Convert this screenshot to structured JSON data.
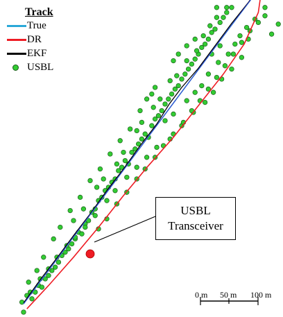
{
  "chart_data": {
    "type": "line",
    "legend": {
      "title": "Track",
      "placement": "top-left",
      "entries": [
        {
          "label": "True",
          "color": "#2aa8d8",
          "marker": "line"
        },
        {
          "label": "DR",
          "color": "#ee1c24",
          "marker": "line"
        },
        {
          "label": "EKF",
          "color": "#000000",
          "marker": "line"
        },
        {
          "label": "USBL",
          "color": "#33cc33",
          "marker": "point"
        }
      ]
    },
    "units": "m",
    "series": [
      {
        "name": "True",
        "color": "#2aa8d8",
        "points": [
          [
            0,
            0
          ],
          [
            50,
            67
          ],
          [
            100,
            134
          ],
          [
            150,
            201
          ],
          [
            200,
            268
          ],
          [
            250,
            335
          ],
          [
            284,
            380
          ]
        ]
      },
      {
        "name": "EKF",
        "color": "#000000",
        "points": [
          [
            0,
            1
          ],
          [
            20,
            29
          ],
          [
            40,
            55
          ],
          [
            60,
            82
          ],
          [
            80,
            108
          ],
          [
            100,
            136
          ],
          [
            120,
            162
          ],
          [
            140,
            190
          ],
          [
            160,
            216
          ],
          [
            175,
            240
          ],
          [
            190,
            260
          ],
          [
            210,
            283
          ],
          [
            230,
            310
          ],
          [
            250,
            337
          ],
          [
            270,
            362
          ],
          [
            284,
            381
          ]
        ]
      },
      {
        "name": "DR",
        "color": "#ee1c24",
        "points": [
          [
            4,
            -6
          ],
          [
            30,
            22
          ],
          [
            60,
            56
          ],
          [
            90,
            92
          ],
          [
            120,
            130
          ],
          [
            150,
            166
          ],
          [
            180,
            200
          ],
          [
            210,
            238
          ],
          [
            240,
            276
          ],
          [
            265,
            312
          ],
          [
            282,
            350
          ],
          [
            286,
            378
          ]
        ]
      },
      {
        "name": "USBL",
        "color": "#33cc33",
        "points": [
          [
            -2,
            2
          ],
          [
            4,
            10
          ],
          [
            10,
            6
          ],
          [
            14,
            14
          ],
          [
            18,
            22
          ],
          [
            22,
            20
          ],
          [
            26,
            30
          ],
          [
            30,
            34
          ],
          [
            34,
            40
          ],
          [
            38,
            44
          ],
          [
            42,
            50
          ],
          [
            46,
            58
          ],
          [
            50,
            62
          ],
          [
            54,
            66
          ],
          [
            58,
            72
          ],
          [
            62,
            78
          ],
          [
            66,
            86
          ],
          [
            70,
            84
          ],
          [
            74,
            96
          ],
          [
            78,
            100
          ],
          [
            82,
            110
          ],
          [
            86,
            114
          ],
          [
            90,
            124
          ],
          [
            94,
            128
          ],
          [
            98,
            136
          ],
          [
            102,
            140
          ],
          [
            106,
            146
          ],
          [
            110,
            150
          ],
          [
            114,
            160
          ],
          [
            118,
            164
          ],
          [
            122,
            172
          ],
          [
            126,
            168
          ],
          [
            130,
            182
          ],
          [
            134,
            186
          ],
          [
            138,
            192
          ],
          [
            142,
            198
          ],
          [
            146,
            204
          ],
          [
            150,
            200
          ],
          [
            154,
            214
          ],
          [
            158,
            222
          ],
          [
            162,
            226
          ],
          [
            166,
            232
          ],
          [
            170,
            240
          ],
          [
            174,
            246
          ],
          [
            178,
            252
          ],
          [
            182,
            258
          ],
          [
            186,
            262
          ],
          [
            190,
            270
          ],
          [
            194,
            276
          ],
          [
            198,
            282
          ],
          [
            202,
            288
          ],
          [
            206,
            294
          ],
          [
            210,
            300
          ],
          [
            214,
            308
          ],
          [
            218,
            312
          ],
          [
            222,
            318
          ],
          [
            226,
            326
          ],
          [
            230,
            330
          ],
          [
            236,
            338
          ],
          [
            240,
            344
          ],
          [
            244,
            350
          ],
          [
            250,
            356
          ],
          [
            256,
            362
          ],
          [
            262,
            368
          ],
          [
            268,
            372
          ],
          [
            276,
            378
          ],
          [
            60,
            100
          ],
          [
            72,
            114
          ],
          [
            88,
            140
          ],
          [
            96,
            150
          ],
          [
            112,
            168
          ],
          [
            120,
            182
          ],
          [
            136,
            208
          ],
          [
            142,
            218
          ],
          [
            156,
            236
          ],
          [
            164,
            246
          ],
          [
            176,
            268
          ],
          [
            184,
            274
          ],
          [
            196,
            292
          ],
          [
            208,
            304
          ],
          [
            216,
            322
          ],
          [
            224,
            334
          ],
          [
            232,
            344
          ],
          [
            244,
            356
          ],
          [
            252,
            366
          ],
          [
            266,
            374
          ],
          [
            274,
            384
          ],
          [
            282,
            392
          ],
          [
            170,
            220
          ],
          [
            180,
            228
          ],
          [
            196,
            244
          ],
          [
            206,
            254
          ],
          [
            214,
            262
          ],
          [
            222,
            276
          ],
          [
            234,
            290
          ],
          [
            246,
            300
          ],
          [
            254,
            312
          ],
          [
            260,
            322
          ],
          [
            268,
            332
          ],
          [
            278,
            342
          ],
          [
            290,
            356
          ],
          [
            300,
            362
          ],
          [
            310,
            358
          ],
          [
            318,
            352
          ],
          [
            306,
            336
          ],
          [
            298,
            324
          ],
          [
            290,
            346
          ],
          [
            270,
            318
          ],
          [
            262,
            296
          ],
          [
            250,
            282
          ],
          [
            238,
            270
          ],
          [
            228,
            254
          ],
          [
            218,
            242
          ],
          [
            204,
            230
          ],
          [
            190,
            214
          ],
          [
            176,
            198
          ],
          [
            160,
            188
          ],
          [
            148,
            176
          ],
          [
            136,
            164
          ],
          [
            124,
            152
          ],
          [
            110,
            136
          ],
          [
            100,
            124
          ],
          [
            86,
            106
          ],
          [
            74,
            92
          ],
          [
            62,
            80
          ],
          [
            52,
            70
          ],
          [
            40,
            56
          ],
          [
            30,
            42
          ],
          [
            20,
            30
          ],
          [
            8,
            14
          ],
          [
            180,
            292
          ],
          [
            186,
            300
          ],
          [
            196,
            310
          ],
          [
            206,
            318
          ],
          [
            226,
            300
          ],
          [
            236,
            310
          ],
          [
            148,
            246
          ],
          [
            158,
            260
          ],
          [
            246,
            394
          ],
          [
            258,
            402
          ],
          [
            298,
            388
          ],
          [
            304,
            378
          ],
          [
            284,
            372
          ],
          [
            276,
            366
          ],
          [
            154,
            252
          ],
          [
            140,
            232
          ],
          [
            128,
            210
          ],
          [
            116,
            196
          ],
          [
            104,
            180
          ],
          [
            92,
            162
          ],
          [
            80,
            148
          ],
          [
            68,
            128
          ],
          [
            56,
            112
          ],
          [
            44,
            92
          ],
          [
            36,
            78
          ],
          [
            24,
            56
          ],
          [
            16,
            40
          ],
          [
            6,
            26
          ],
          [
            0,
            -10
          ],
          [
            90,
            90
          ],
          [
            100,
            102
          ],
          [
            112,
            120
          ],
          [
            124,
            134
          ],
          [
            136,
            150
          ],
          [
            146,
            162
          ],
          [
            158,
            176
          ],
          [
            168,
            190
          ],
          [
            180,
            204
          ],
          [
            192,
            218
          ],
          [
            202,
            232
          ],
          [
            212,
            244
          ],
          [
            222,
            258
          ],
          [
            232,
            272
          ],
          [
            242,
            286
          ],
          [
            252,
            300
          ],
          [
            262,
            314
          ],
          [
            272,
            328
          ],
          [
            282,
            338
          ],
          [
            290,
            366
          ],
          [
            264,
            386
          ],
          [
            232,
            356
          ]
        ]
      }
    ],
    "annotation": {
      "line1": "USBL",
      "line2": "Transceiver",
      "point": [
        80,
        60
      ],
      "marker_color": "#ee1c24"
    },
    "scale_bar": {
      "labels": [
        "0 m",
        "50 m",
        "100 m"
      ],
      "length": 100
    }
  }
}
